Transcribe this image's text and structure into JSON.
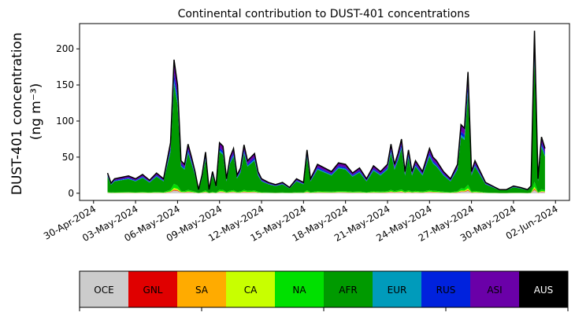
{
  "chart_data": {
    "type": "area",
    "stacked": true,
    "title": "Continental contribution to DUST-401 concentrations",
    "ylabel_line1": "DUST-401 concentration",
    "ylabel_line2": "(ng m⁻³)",
    "xlabel": "",
    "x_start": "2024-05-01",
    "x_end": "2024-06-01",
    "xlim": [
      "2024-04-29",
      "2024-06-03"
    ],
    "ylim": [
      -10,
      235
    ],
    "yticks": [
      0,
      50,
      100,
      150,
      200
    ],
    "xticks": [
      {
        "date": "2024-04-30",
        "label": "30-Apr-2024"
      },
      {
        "date": "2024-05-03",
        "label": "03-May-2024"
      },
      {
        "date": "2024-05-06",
        "label": "06-May-2024"
      },
      {
        "date": "2024-05-09",
        "label": "09-May-2024"
      },
      {
        "date": "2024-05-12",
        "label": "12-May-2024"
      },
      {
        "date": "2024-05-15",
        "label": "15-May-2024"
      },
      {
        "date": "2024-05-18",
        "label": "18-May-2024"
      },
      {
        "date": "2024-05-21",
        "label": "21-May-2024"
      },
      {
        "date": "2024-05-24",
        "label": "24-May-2024"
      },
      {
        "date": "2024-05-27",
        "label": "27-May-2024"
      },
      {
        "date": "2024-05-30",
        "label": "30-May-2024"
      },
      {
        "date": "2024-06-02",
        "label": "02-Jun-2024"
      }
    ],
    "total_profile": [
      [
        "2024-05-01",
        28
      ],
      [
        "2024-05-01T06",
        14
      ],
      [
        "2024-05-01T12",
        20
      ],
      [
        "2024-05-02",
        22
      ],
      [
        "2024-05-02T12",
        24
      ],
      [
        "2024-05-03",
        20
      ],
      [
        "2024-05-03T12",
        26
      ],
      [
        "2024-05-04",
        18
      ],
      [
        "2024-05-04T12",
        28
      ],
      [
        "2024-05-05",
        20
      ],
      [
        "2024-05-05T12",
        70
      ],
      [
        "2024-05-05T18",
        185
      ],
      [
        "2024-05-06",
        150
      ],
      [
        "2024-05-06T06",
        45
      ],
      [
        "2024-05-06T12",
        40
      ],
      [
        "2024-05-06T18",
        68
      ],
      [
        "2024-05-07",
        50
      ],
      [
        "2024-05-07T06",
        30
      ],
      [
        "2024-05-07T12",
        5
      ],
      [
        "2024-05-07T18",
        25
      ],
      [
        "2024-05-08",
        57
      ],
      [
        "2024-05-08T06",
        5
      ],
      [
        "2024-05-08T12",
        30
      ],
      [
        "2024-05-08T18",
        10
      ],
      [
        "2024-05-09",
        70
      ],
      [
        "2024-05-09T06",
        65
      ],
      [
        "2024-05-09T12",
        20
      ],
      [
        "2024-05-09T18",
        50
      ],
      [
        "2024-05-10",
        62
      ],
      [
        "2024-05-10T06",
        25
      ],
      [
        "2024-05-10T12",
        35
      ],
      [
        "2024-05-10T18",
        67
      ],
      [
        "2024-05-11",
        45
      ],
      [
        "2024-05-11T12",
        55
      ],
      [
        "2024-05-11T18",
        30
      ],
      [
        "2024-05-12",
        20
      ],
      [
        "2024-05-12T12",
        15
      ],
      [
        "2024-05-13",
        12
      ],
      [
        "2024-05-13T12",
        15
      ],
      [
        "2024-05-14",
        8
      ],
      [
        "2024-05-14T12",
        20
      ],
      [
        "2024-05-15",
        15
      ],
      [
        "2024-05-15T06",
        60
      ],
      [
        "2024-05-15T12",
        20
      ],
      [
        "2024-05-15T18",
        30
      ],
      [
        "2024-05-16",
        40
      ],
      [
        "2024-05-16T12",
        35
      ],
      [
        "2024-05-17",
        30
      ],
      [
        "2024-05-17T12",
        42
      ],
      [
        "2024-05-18",
        40
      ],
      [
        "2024-05-18T12",
        28
      ],
      [
        "2024-05-19",
        35
      ],
      [
        "2024-05-19T12",
        20
      ],
      [
        "2024-05-20",
        38
      ],
      [
        "2024-05-20T12",
        30
      ],
      [
        "2024-05-21",
        40
      ],
      [
        "2024-05-21T06",
        68
      ],
      [
        "2024-05-21T12",
        40
      ],
      [
        "2024-05-21T18",
        55
      ],
      [
        "2024-05-22",
        75
      ],
      [
        "2024-05-22T06",
        30
      ],
      [
        "2024-05-22T12",
        60
      ],
      [
        "2024-05-22T18",
        30
      ],
      [
        "2024-05-23",
        45
      ],
      [
        "2024-05-23T12",
        30
      ],
      [
        "2024-05-24",
        62
      ],
      [
        "2024-05-24T06",
        50
      ],
      [
        "2024-05-24T12",
        45
      ],
      [
        "2024-05-25",
        30
      ],
      [
        "2024-05-25T12",
        20
      ],
      [
        "2024-05-26",
        40
      ],
      [
        "2024-05-26T06",
        95
      ],
      [
        "2024-05-26T12",
        90
      ],
      [
        "2024-05-26T18",
        168
      ],
      [
        "2024-05-27",
        30
      ],
      [
        "2024-05-27T06",
        45
      ],
      [
        "2024-05-27T12",
        35
      ],
      [
        "2024-05-27T18",
        25
      ],
      [
        "2024-05-28",
        15
      ],
      [
        "2024-05-28T12",
        10
      ],
      [
        "2024-05-29",
        5
      ],
      [
        "2024-05-29T12",
        5
      ],
      [
        "2024-05-30",
        10
      ],
      [
        "2024-05-30T12",
        8
      ],
      [
        "2024-05-31",
        5
      ],
      [
        "2024-05-31T06",
        10
      ],
      [
        "2024-05-31T12",
        225
      ],
      [
        "2024-05-31T18",
        20
      ],
      [
        "2024-06-01",
        78
      ],
      [
        "2024-06-01T06",
        62
      ]
    ],
    "series": [
      {
        "name": "OCE",
        "color": "#cccccc",
        "share": 0.02
      },
      {
        "name": "GNL",
        "color": "#e00000",
        "share": 0.005
      },
      {
        "name": "SA",
        "color": "#ffab00",
        "share": 0.005
      },
      {
        "name": "CA",
        "color": "#c8ff00",
        "share": 0.01
      },
      {
        "name": "NA",
        "color": "#00e000",
        "share": 0.03
      },
      {
        "name": "AFR",
        "color": "#009a00",
        "share": 0.75
      },
      {
        "name": "EUR",
        "color": "#009bbb",
        "share": 0.03
      },
      {
        "name": "RUS",
        "color": "#0022dd",
        "share": 0.05
      },
      {
        "name": "ASI",
        "color": "#6a00a8",
        "share": 0.1
      },
      {
        "name": "AUS",
        "color": "#000000",
        "share": 0.0
      }
    ],
    "total_line_color": "#000000",
    "grid": false,
    "legend": "colorbar-below"
  }
}
